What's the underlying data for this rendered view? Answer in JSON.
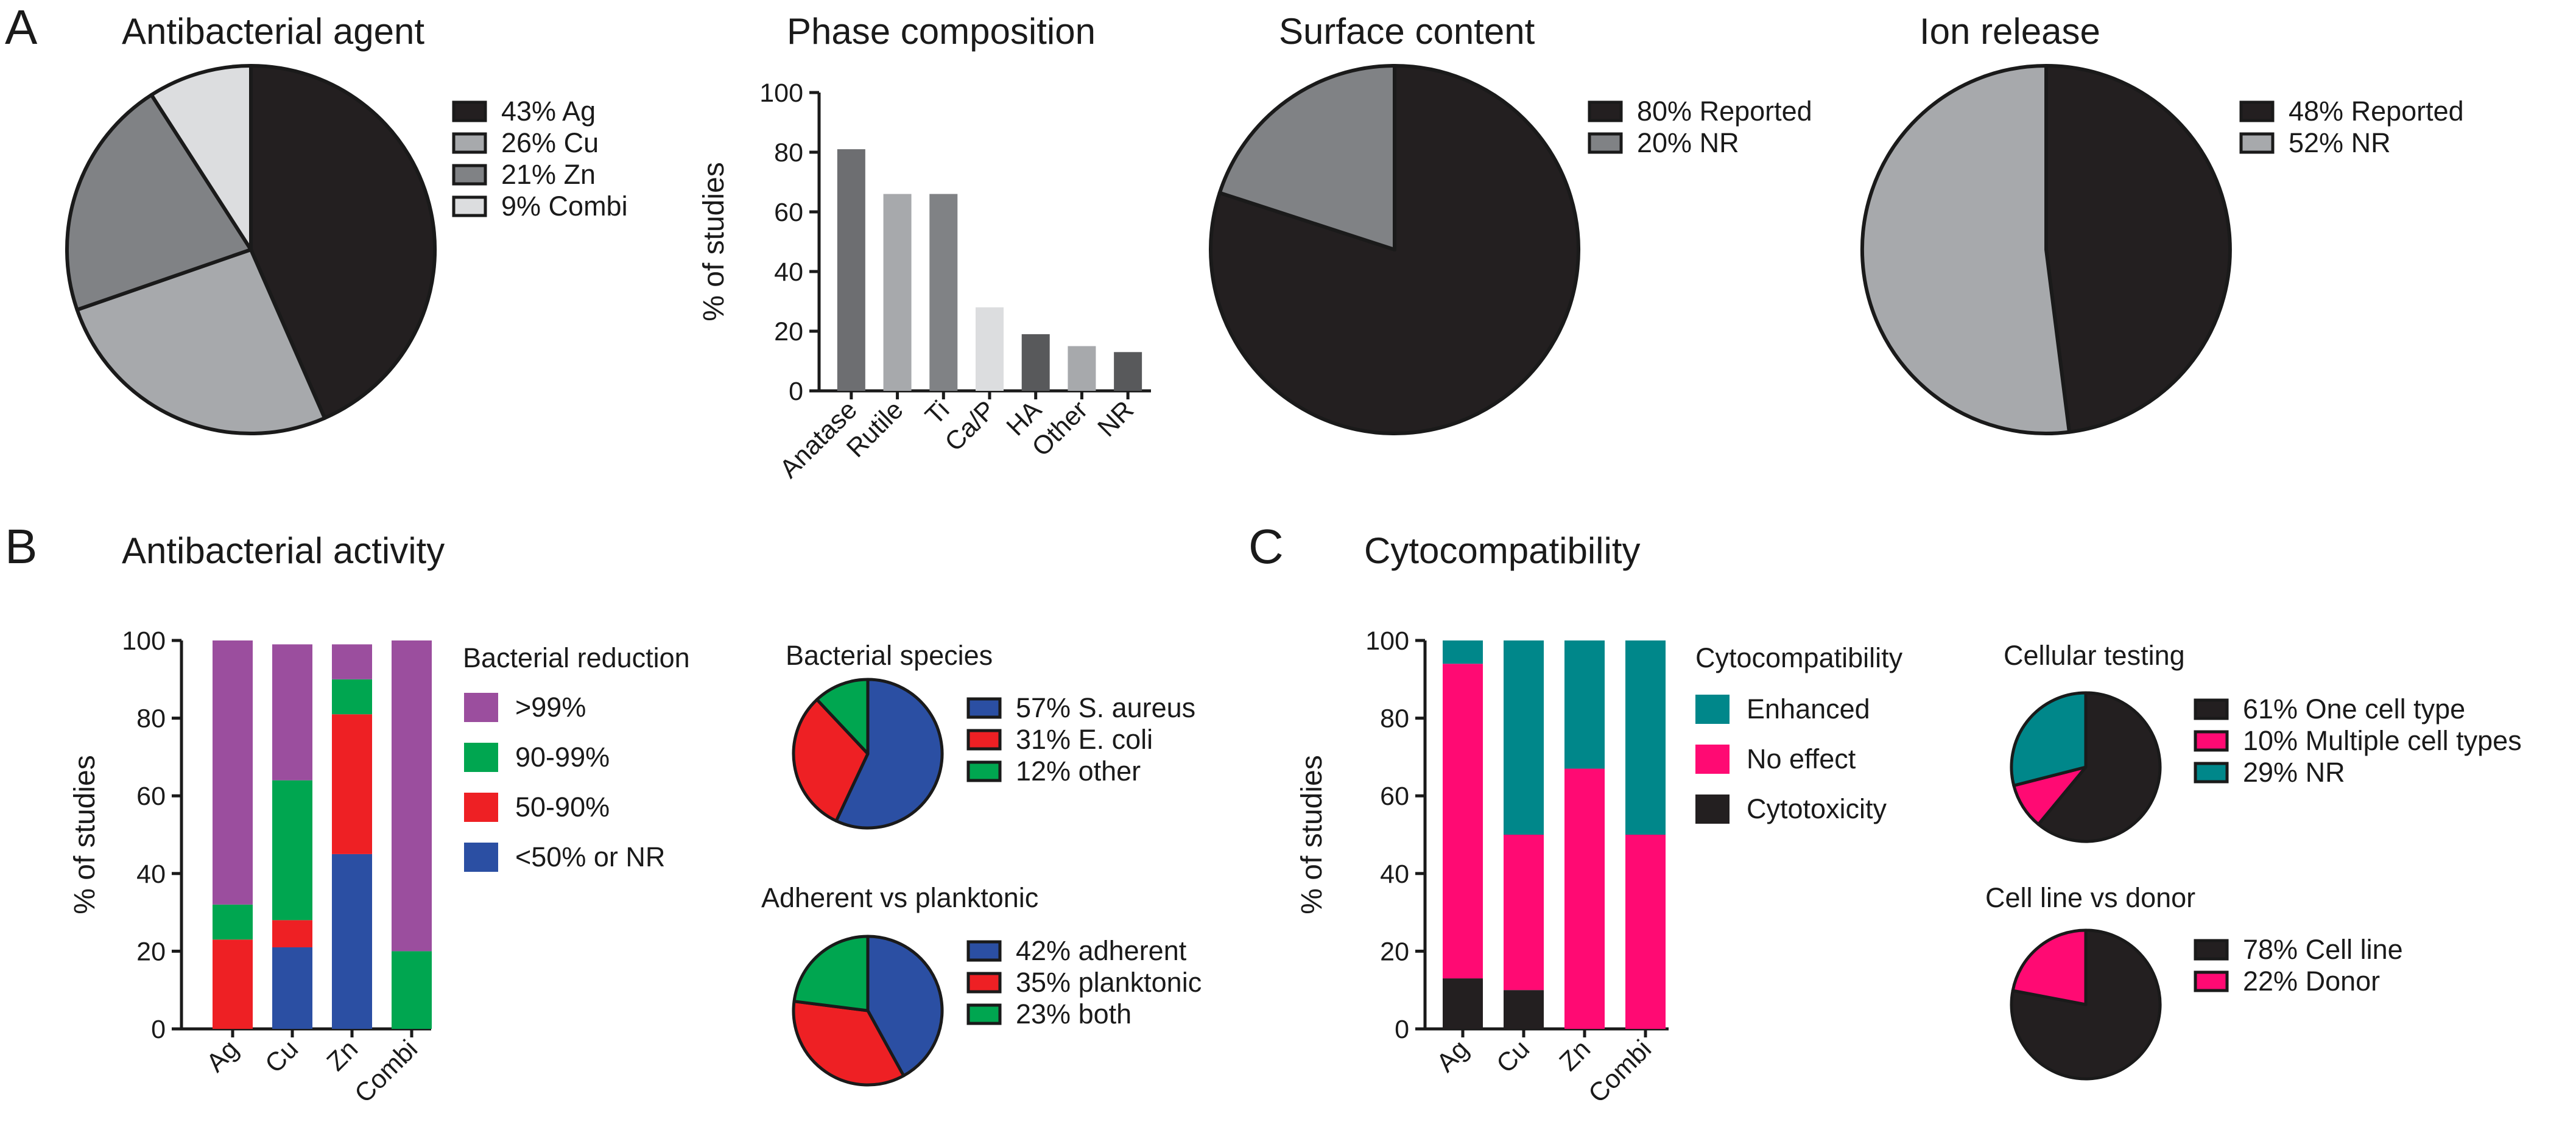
{
  "panels": {
    "a": "A",
    "b": "B",
    "c": "C"
  },
  "titles": {
    "antibacterial_agent": "Antibacterial agent",
    "phase_composition": "Phase composition",
    "surface_content": "Surface content",
    "ion_release": "Ion release",
    "antibacterial_activity": "Antibacterial activity",
    "cytocompatibility": "Cytocompatibility"
  },
  "chart_data": [
    {
      "id": "agent",
      "type": "pie",
      "title": "Antibacterial agent",
      "slices": [
        {
          "label": "43% Ag",
          "value": 43,
          "color": "#231f20"
        },
        {
          "label": "26% Cu",
          "value": 26,
          "color": "#a7a9ac"
        },
        {
          "label": "21% Zn",
          "value": 21,
          "color": "#808285"
        },
        {
          "label": "9% Combi",
          "value": 9,
          "color": "#dcdddf"
        }
      ]
    },
    {
      "id": "phase",
      "type": "bar",
      "title": "Phase composition",
      "ylabel": "% of studies",
      "ylim": [
        0,
        100
      ],
      "yticks": [
        "0",
        "20",
        "40",
        "60",
        "80",
        "100"
      ],
      "categories": [
        "Anatase",
        "Rutile",
        "Ti",
        "Ca/P",
        "HA",
        "Other",
        "NR"
      ],
      "values": [
        81,
        66,
        66,
        28,
        19,
        15,
        13
      ],
      "colors": [
        "#6d6e71",
        "#a7a9ac",
        "#808285",
        "#dcdddf",
        "#58595b",
        "#a7a9ac",
        "#58595b"
      ]
    },
    {
      "id": "surface",
      "type": "pie",
      "title": "Surface content",
      "slices": [
        {
          "label": "80% Reported",
          "value": 80,
          "color": "#231f20"
        },
        {
          "label": "20% NR",
          "value": 20,
          "color": "#808285"
        }
      ]
    },
    {
      "id": "ion",
      "type": "pie",
      "title": "Ion release",
      "slices": [
        {
          "label": "48% Reported",
          "value": 48,
          "color": "#231f20"
        },
        {
          "label": "52% NR",
          "value": 52,
          "color": "#a7a9ac"
        }
      ]
    },
    {
      "id": "activity",
      "type": "bar",
      "stacked": true,
      "title": "Antibacterial activity",
      "ylabel": "% of studies",
      "ylim": [
        0,
        100
      ],
      "yticks": [
        "0",
        "20",
        "40",
        "60",
        "80",
        "100"
      ],
      "legend_title": "Bacterial reduction",
      "categories": [
        "Ag",
        "Cu",
        "Zn",
        "Combi"
      ],
      "series": [
        {
          "name": "<50% or NR",
          "color": "#2b4fa3",
          "values": [
            0,
            21,
            45,
            0
          ]
        },
        {
          "name": "50-90%",
          "color": "#ee2024",
          "values": [
            23,
            7,
            36,
            0
          ]
        },
        {
          "name": "90-99%",
          "color": "#00a650",
          "values": [
            9,
            36,
            9,
            20
          ]
        },
        {
          "name": ">99%",
          "color": "#9b4e9e",
          "values": [
            68,
            35,
            9,
            80
          ]
        }
      ]
    },
    {
      "id": "species",
      "type": "pie",
      "title": "Bacterial species",
      "slices": [
        {
          "label": "57% S. aureus",
          "value": 57,
          "color": "#2b4fa3"
        },
        {
          "label": "31% E. coli",
          "value": 31,
          "color": "#ee2024"
        },
        {
          "label": "12% other",
          "value": 12,
          "color": "#00a650"
        }
      ]
    },
    {
      "id": "adherent",
      "type": "pie",
      "title": "Adherent vs planktonic",
      "slices": [
        {
          "label": "42% adherent",
          "value": 42,
          "color": "#2b4fa3"
        },
        {
          "label": "35% planktonic",
          "value": 35,
          "color": "#ee2024"
        },
        {
          "label": "23% both",
          "value": 23,
          "color": "#00a650"
        }
      ]
    },
    {
      "id": "cyto",
      "type": "bar",
      "stacked": true,
      "title": "Cytocompatibility",
      "ylabel": "% of studies",
      "ylim": [
        0,
        100
      ],
      "yticks": [
        "0",
        "20",
        "40",
        "60",
        "80",
        "100"
      ],
      "legend_title": "Cytocompatibility",
      "categories": [
        "Ag",
        "Cu",
        "Zn",
        "Combi"
      ],
      "series": [
        {
          "name": "Cytotoxicity",
          "color": "#231f20",
          "values": [
            13,
            10,
            0,
            0
          ]
        },
        {
          "name": "No effect",
          "color": "#ff0a73",
          "values": [
            81,
            40,
            67,
            50
          ]
        },
        {
          "name": "Enhanced",
          "color": "#00878a",
          "values": [
            6,
            50,
            33,
            50
          ]
        }
      ]
    },
    {
      "id": "cellular",
      "type": "pie",
      "title": "Cellular testing",
      "slices": [
        {
          "label": "61% One cell type",
          "value": 61,
          "color": "#231f20"
        },
        {
          "label": "10% Multiple cell types",
          "value": 10,
          "color": "#ff0a73"
        },
        {
          "label": "29% NR",
          "value": 29,
          "color": "#00878a"
        }
      ]
    },
    {
      "id": "donor",
      "type": "pie",
      "title": "Cell line vs donor",
      "slices": [
        {
          "label": "78% Cell line",
          "value": 78,
          "color": "#231f20"
        },
        {
          "label": "22% Donor",
          "value": 22,
          "color": "#ff0a73"
        }
      ]
    }
  ]
}
